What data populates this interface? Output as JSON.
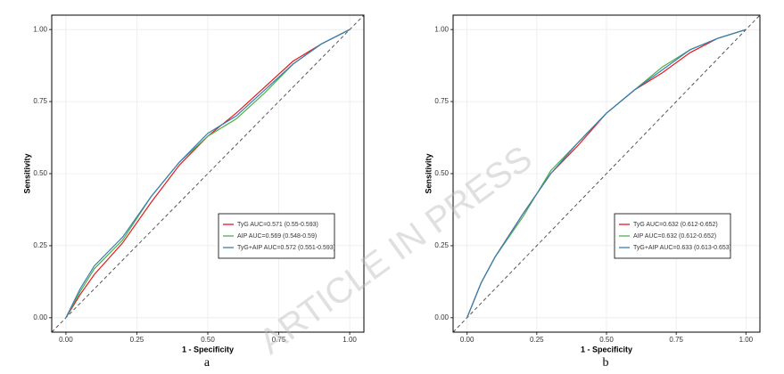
{
  "watermark": "ARTICLE IN PRESS",
  "chart_data": [
    {
      "type": "line",
      "panel_label": "a",
      "x_label": "1 - Specificity",
      "y_label": "Sensitivity",
      "xlim": [
        -0.05,
        1.05
      ],
      "ylim": [
        -0.05,
        1.05
      ],
      "grid": true,
      "legend": "lower-right",
      "xticks": [
        {
          "value": 0,
          "label": "0.00"
        },
        {
          "value": 0.25,
          "label": "0.25"
        },
        {
          "value": 0.5,
          "label": "0.50"
        },
        {
          "value": 0.75,
          "label": "0.75"
        },
        {
          "value": 1,
          "label": "1.00"
        }
      ],
      "yticks": [
        {
          "value": 0,
          "label": "0.00"
        },
        {
          "value": 0.25,
          "label": "0.25"
        },
        {
          "value": 0.5,
          "label": "0.50"
        },
        {
          "value": 0.75,
          "label": "0.75"
        },
        {
          "value": 1,
          "label": "1.00"
        }
      ],
      "x": [
        0,
        0.05,
        0.1,
        0.2,
        0.3,
        0.4,
        0.5,
        0.6,
        0.7,
        0.8,
        0.9,
        1
      ],
      "series": [
        {
          "name": "TyG  AUC=0.571 (0.55-0.593)",
          "color": "#e41a1c",
          "values": [
            0,
            0.08,
            0.15,
            0.26,
            0.4,
            0.53,
            0.63,
            0.71,
            0.8,
            0.89,
            0.95,
            1
          ]
        },
        {
          "name": "AIP  AUC=0.569 (0.548-0.59)",
          "color": "#4daf4a",
          "values": [
            0,
            0.09,
            0.17,
            0.27,
            0.42,
            0.54,
            0.63,
            0.69,
            0.78,
            0.88,
            0.95,
            1
          ]
        },
        {
          "name": "TyG+AIP  AUC=0.572 (0.551-0.593)",
          "color": "#377eb8",
          "values": [
            0,
            0.1,
            0.18,
            0.28,
            0.42,
            0.54,
            0.64,
            0.7,
            0.79,
            0.88,
            0.95,
            1
          ]
        }
      ]
    },
    {
      "type": "line",
      "panel_label": "b",
      "x_label": "1 - Specificity",
      "y_label": "Sensitivity",
      "xlim": [
        -0.05,
        1.05
      ],
      "ylim": [
        -0.05,
        1.05
      ],
      "grid": true,
      "legend": "lower-right",
      "xticks": [
        {
          "value": 0,
          "label": "0.00"
        },
        {
          "value": 0.25,
          "label": "0.25"
        },
        {
          "value": 0.5,
          "label": "0.50"
        },
        {
          "value": 0.75,
          "label": "0.75"
        },
        {
          "value": 1,
          "label": "1.00"
        }
      ],
      "yticks": [
        {
          "value": 0,
          "label": "0.00"
        },
        {
          "value": 0.25,
          "label": "0.25"
        },
        {
          "value": 0.5,
          "label": "0.50"
        },
        {
          "value": 0.75,
          "label": "0.75"
        },
        {
          "value": 1,
          "label": "1.00"
        }
      ],
      "x": [
        0,
        0.05,
        0.1,
        0.2,
        0.3,
        0.4,
        0.5,
        0.6,
        0.7,
        0.8,
        0.9,
        1
      ],
      "series": [
        {
          "name": "TyG  AUC=0.632 (0.612-0.652)",
          "color": "#e41a1c",
          "values": [
            0,
            0.12,
            0.21,
            0.36,
            0.5,
            0.6,
            0.71,
            0.79,
            0.85,
            0.92,
            0.97,
            1
          ]
        },
        {
          "name": "AIP  AUC=0.632 (0.612-0.652)",
          "color": "#4daf4a",
          "values": [
            0,
            0.12,
            0.21,
            0.35,
            0.51,
            0.61,
            0.71,
            0.79,
            0.87,
            0.93,
            0.97,
            1
          ]
        },
        {
          "name": "TyG+AIP  AUC=0.633 (0.613-0.653)",
          "color": "#377eb8",
          "values": [
            0,
            0.12,
            0.21,
            0.36,
            0.5,
            0.61,
            0.71,
            0.79,
            0.86,
            0.93,
            0.97,
            1
          ]
        }
      ]
    }
  ]
}
